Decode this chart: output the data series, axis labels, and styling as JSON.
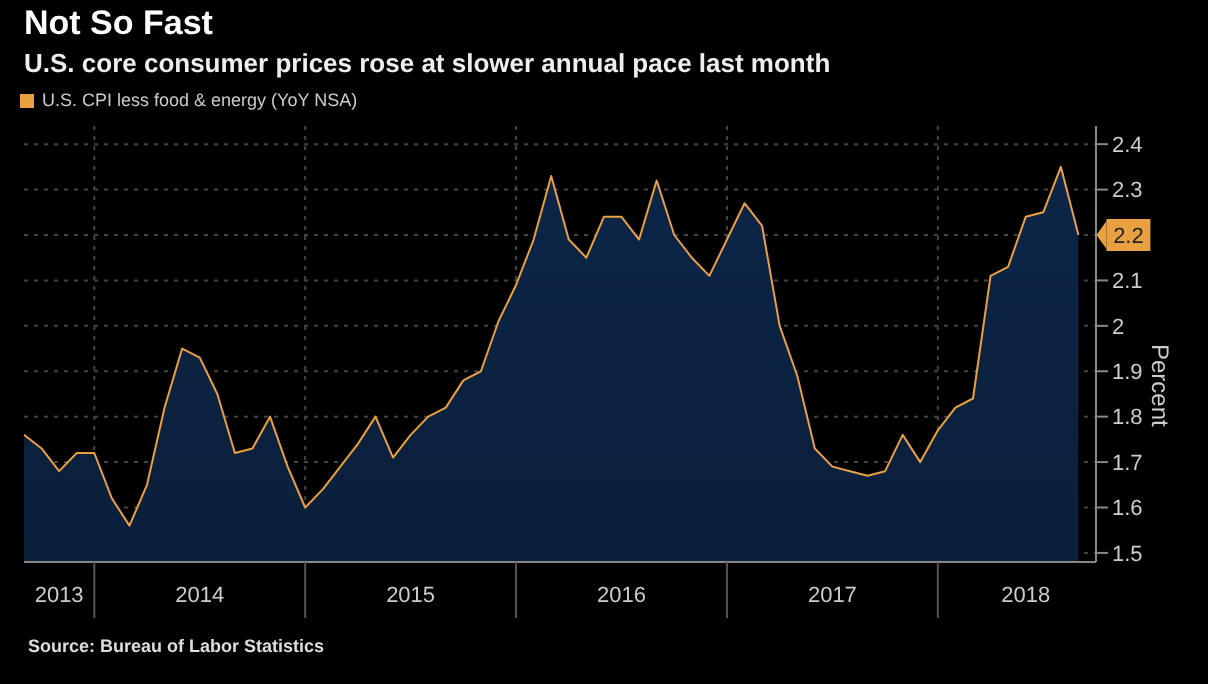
{
  "chart_data": {
    "type": "area",
    "title": "Not So Fast",
    "subtitle": "U.S. core consumer prices rose at slower annual pace last month",
    "ylabel": "Percent",
    "x": [
      "2013-09",
      "2013-10",
      "2013-11",
      "2013-12",
      "2014-01",
      "2014-02",
      "2014-03",
      "2014-04",
      "2014-05",
      "2014-06",
      "2014-07",
      "2014-08",
      "2014-09",
      "2014-10",
      "2014-11",
      "2014-12",
      "2015-01",
      "2015-02",
      "2015-03",
      "2015-04",
      "2015-05",
      "2015-06",
      "2015-07",
      "2015-08",
      "2015-09",
      "2015-10",
      "2015-11",
      "2015-12",
      "2016-01",
      "2016-02",
      "2016-03",
      "2016-04",
      "2016-05",
      "2016-06",
      "2016-07",
      "2016-08",
      "2016-09",
      "2016-10",
      "2016-11",
      "2016-12",
      "2017-01",
      "2017-02",
      "2017-03",
      "2017-04",
      "2017-05",
      "2017-06",
      "2017-07",
      "2017-08",
      "2017-09",
      "2017-10",
      "2017-11",
      "2017-12",
      "2018-01",
      "2018-02",
      "2018-03",
      "2018-04",
      "2018-05",
      "2018-06",
      "2018-07",
      "2018-08",
      "2018-09"
    ],
    "series": [
      {
        "name": "U.S. CPI less food & energy (YoY NSA)",
        "color": "#e8a040",
        "values": [
          1.76,
          1.73,
          1.68,
          1.72,
          1.72,
          1.62,
          1.56,
          1.65,
          1.82,
          1.95,
          1.93,
          1.85,
          1.72,
          1.73,
          1.8,
          1.69,
          1.6,
          1.64,
          1.69,
          1.74,
          1.8,
          1.71,
          1.76,
          1.8,
          1.82,
          1.88,
          1.9,
          2.01,
          2.09,
          2.19,
          2.33,
          2.19,
          2.15,
          2.24,
          2.24,
          2.19,
          2.32,
          2.2,
          2.15,
          2.11,
          2.19,
          2.27,
          2.22,
          2.0,
          1.89,
          1.73,
          1.69,
          1.68,
          1.67,
          1.68,
          1.76,
          1.7,
          1.77,
          1.82,
          1.84,
          2.11,
          2.13,
          2.24,
          2.25,
          2.35,
          2.2
        ]
      }
    ],
    "xlim": [
      "2013-09",
      "2018-10"
    ],
    "xticks": [
      {
        "value": "2013-11",
        "label": "2013"
      },
      {
        "value": "2014-01",
        "label": null
      },
      {
        "value": "2014-07",
        "label": "2014"
      },
      {
        "value": "2015-01",
        "label": null
      },
      {
        "value": "2015-07",
        "label": "2015"
      },
      {
        "value": "2016-01",
        "label": null
      },
      {
        "value": "2016-07",
        "label": "2016"
      },
      {
        "value": "2017-01",
        "label": null
      },
      {
        "value": "2017-07",
        "label": "2017"
      },
      {
        "value": "2018-01",
        "label": null
      },
      {
        "value": "2018-06",
        "label": "2018"
      }
    ],
    "ylim": [
      1.48,
      2.44
    ],
    "yticks": [
      1.5,
      1.6,
      1.7,
      1.8,
      1.9,
      2.0,
      2.1,
      {
        "value": 2.2,
        "label": null
      },
      2.3,
      2.4
    ],
    "grid": true,
    "legend": "top left",
    "annotations": [
      {
        "text": "2.2",
        "x": "2018-09",
        "y": 2.2
      },
      "Source: Bureau of Labor Statistics"
    ]
  }
}
